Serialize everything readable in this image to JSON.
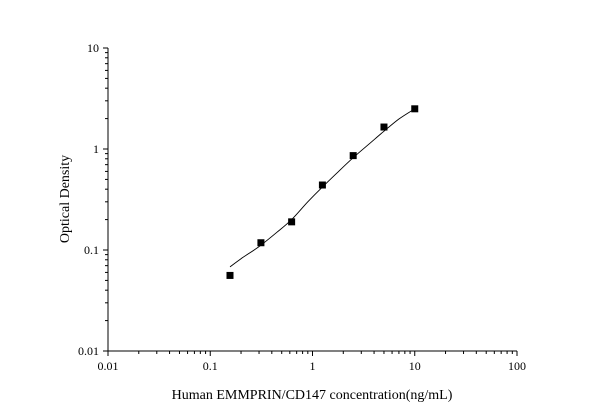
{
  "chart_data": {
    "type": "scatter",
    "title": "",
    "xlabel": "Human EMMPRIN/CD147 concentration(ng/mL)",
    "ylabel": "Optical Density",
    "xscale": "log",
    "yscale": "log",
    "xlim": [
      0.01,
      100
    ],
    "ylim": [
      0.01,
      10
    ],
    "grid": false,
    "legend": "none",
    "x_tick_values": [
      0.01,
      0.1,
      1,
      10,
      100
    ],
    "x_tick_labels": [
      "0.01",
      "0.1",
      "1",
      "10",
      "100"
    ],
    "y_tick_values": [
      0.01,
      0.1,
      1,
      10
    ],
    "y_tick_labels": [
      "0.01",
      "0.1",
      "1",
      "10"
    ],
    "series": [
      {
        "marker": "square",
        "color": "#000000",
        "x": [
          0.156,
          0.313,
          0.625,
          1.25,
          2.5,
          5,
          10
        ],
        "y": [
          0.056,
          0.118,
          0.19,
          0.44,
          0.86,
          1.65,
          2.5
        ]
      }
    ],
    "fit_curve": {
      "color": "#000000",
      "x": [
        0.156,
        0.2,
        0.3,
        0.45,
        0.625,
        0.9,
        1.25,
        1.8,
        2.5,
        3.5,
        5,
        7,
        10
      ],
      "y": [
        0.068,
        0.082,
        0.108,
        0.15,
        0.2,
        0.3,
        0.42,
        0.6,
        0.82,
        1.1,
        1.5,
        1.98,
        2.5
      ]
    }
  }
}
